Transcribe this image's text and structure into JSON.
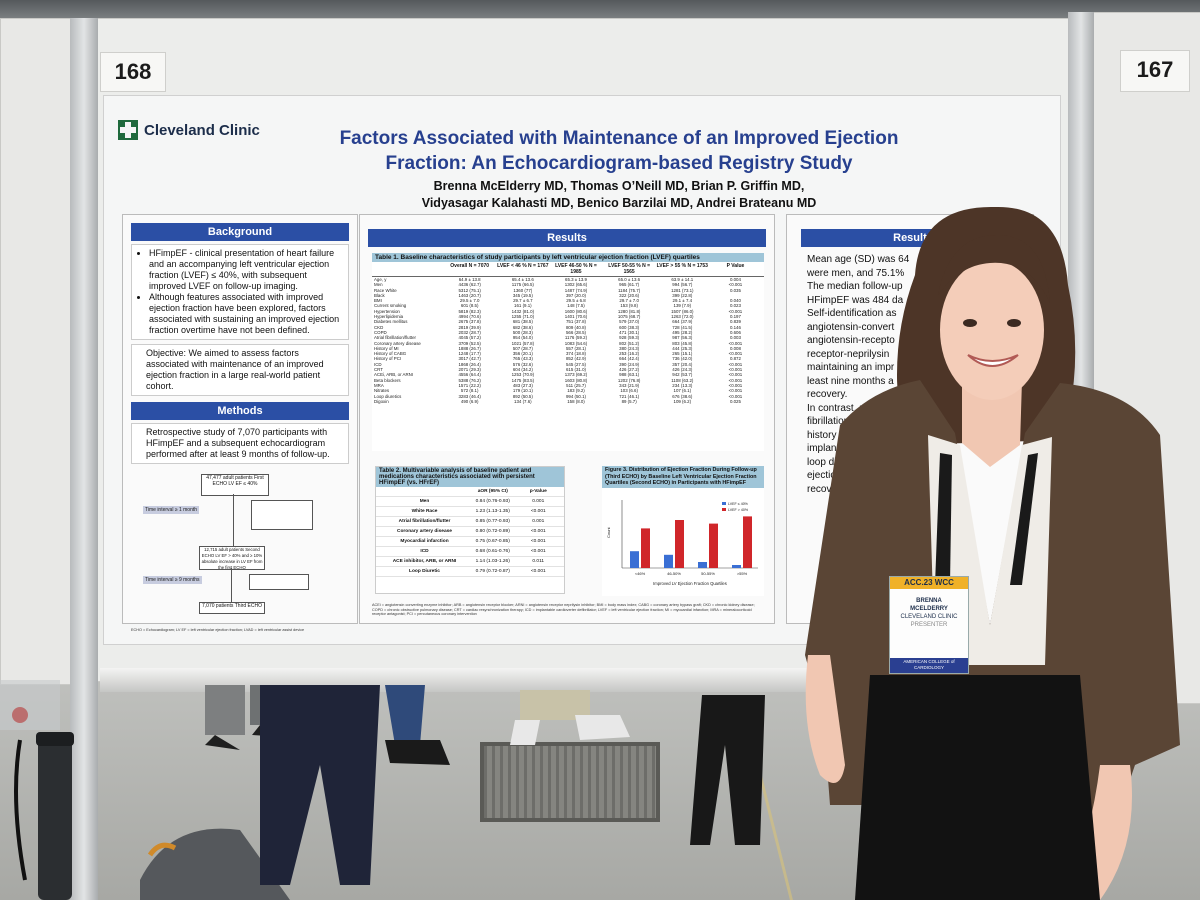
{
  "booths": {
    "left_number": "168",
    "right_number": "167"
  },
  "poster": {
    "logo": "Cleveland Clinic",
    "title": "Factors Associated with Maintenance of an Improved Ejection Fraction: An Echocardiogram-based Registry Study",
    "authors_line1": "Brenna McElderry MD, Thomas O’Neill MD, Brian P. Griffin MD,",
    "authors_line2": "Vidyasagar Kalahasti MD, Benico Barzilai MD, Andrei Brateanu MD",
    "background": {
      "header": "Background",
      "bullet1": "HFimpEF - clinical presentation of heart failure and an accompanying left ventricular ejection fraction (LVEF) ≤ 40%, with subsequent improved LVEF on follow-up imaging.",
      "bullet2": "Although features associated with improved ejection fraction have been explored, factors associated with sustaining an improved ejection fraction overtime have not been defined.",
      "objective": "Objective: We aimed to assess factors associated with maintenance of an improved ejection fraction in a large real-world patient cohort."
    },
    "methods": {
      "header": "Methods",
      "text": "Retrospective study of 7,070 participants with HFimpEF and a subsequent echocardiogram performed after at least 9 months of follow-up.",
      "flow_top": "47,477 adult patients First ECHO LV EF ≤ 40%",
      "flow_mid": "12,715 adult patients Second ECHO LV EF > 40% and ≥ 10% absolute increase in LV EF from the first ECHO",
      "flow_bottom": "7,070 patients Third ECHO",
      "flow_tag1": "Time interval ≥ 1 month",
      "flow_tag2": "Time interval ≥ 9 months",
      "footnote": "ECHO = Echocardiogram; LV EF = left ventricular ejection fraction; LVAD = left ventricular assist device"
    },
    "results": {
      "header": "Results",
      "table1_caption": "Table 1. Baseline characteristics of study participants by left ventricular ejection fraction (LVEF) quartiles",
      "table1_columns": [
        "",
        "Overall N = 7070",
        "LVEF < 46 % N = 1767",
        "LVEF 46-50 % N = 1985",
        "LVEF 50-55 % N = 1565",
        "LVEF > 55 % N = 1753",
        "P Value"
      ],
      "table1_rows": [
        [
          "Age, y",
          "64.9 ± 13.8",
          "65.4 ± 13.6",
          "65.3 ± 13.9",
          "65.0 ± 13.6",
          "63.9 ± 14.1",
          "0.004"
        ],
        [
          "Men",
          "4436 (62.7)",
          "1175 (66.5)",
          "1302 (65.6)",
          "965 (61.7)",
          "994 (56.7)",
          "<0.001"
        ],
        [
          "Race White",
          "5312 (75.1)",
          "1360 (77)",
          "1487 (74.9)",
          "1184 (75.7)",
          "1281 (73.1)",
          "0.035"
        ],
        [
          "Black",
          "1463 (20.7)",
          "345 (19.5)",
          "397 (20.0)",
          "322 (20.6)",
          "399 (22.8)",
          ""
        ],
        [
          "BMI",
          "29.5 ± 7.0",
          "29.7 ± 6.7",
          "29.5 ± 6.8",
          "29.7 ± 7.0",
          "29.1 ± 7.4",
          "0.040"
        ],
        [
          "Current smoking",
          "601 (8.5)",
          "161 (9.1)",
          "148 (7.5)",
          "153 (9.8)",
          "139 (7.9)",
          "0.023"
        ],
        [
          "Hypertension",
          "5819 (82.3)",
          "1432 (81.0)",
          "1600 (80.6)",
          "1280 (81.8)",
          "1507 (86.0)",
          "<0.001"
        ],
        [
          "Hyperlipidemia",
          "4994 (70.6)",
          "1255 (71.0)",
          "1401 (70.6)",
          "1075 (68.7)",
          "1263 (72.0)",
          "0.197"
        ],
        [
          "Diabetes mellitus",
          "2675 (37.8)",
          "681 (38.5)",
          "751 (37.8)",
          "579 (37.0)",
          "664 (37.9)",
          "0.839"
        ],
        [
          "CKD",
          "2819 (39.9)",
          "682 (38.6)",
          "809 (40.8)",
          "600 (38.3)",
          "728 (41.5)",
          "0.146"
        ],
        [
          "COPD",
          "2032 (28.7)",
          "500 (28.3)",
          "566 (28.5)",
          "471 (30.1)",
          "495 (28.2)",
          "0.606"
        ],
        [
          "Atrial fibrillation/flutter",
          "4045 (57.2)",
          "954 (54.0)",
          "1176 (59.2)",
          "928 (59.3)",
          "987 (56.3)",
          "0.003"
        ],
        [
          "Coronary artery disease",
          "3709 (52.5)",
          "1021 (57.8)",
          "1083 (54.6)",
          "802 (51.2)",
          "803 (45.8)",
          "<0.001"
        ],
        [
          "History of MI",
          "1888 (26.7)",
          "507 (28.7)",
          "557 (28.1)",
          "380 (24.3)",
          "444 (25.3)",
          "0.008"
        ],
        [
          "History of CABG",
          "1248 (17.7)",
          "356 (20.1)",
          "374 (18.8)",
          "253 (16.2)",
          "265 (15.1)",
          "<0.001"
        ],
        [
          "History of PCI",
          "3017 (42.7)",
          "765 (43.3)",
          "852 (42.9)",
          "664 (42.4)",
          "736 (42.0)",
          "0.872"
        ],
        [
          "ICD",
          "1868 (26.4)",
          "576 (32.6)",
          "545 (27.5)",
          "390 (24.9)",
          "357 (20.4)",
          "<0.001"
        ],
        [
          "CRT",
          "2071 (29.3)",
          "604 (34.2)",
          "615 (31.0)",
          "426 (27.2)",
          "426 (24.3)",
          "<0.001"
        ],
        [
          "ACEi, ARB, or ARNI",
          "4556 (64.4)",
          "1253 (70.9)",
          "1373 (69.2)",
          "988 (63.1)",
          "942 (53.7)",
          "<0.001"
        ],
        [
          "Beta blockers",
          "5388 (76.2)",
          "1475 (83.5)",
          "1603 (80.8)",
          "1202 (76.8)",
          "1108 (63.2)",
          "<0.001"
        ],
        [
          "MRA",
          "1571 (22.2)",
          "483 (27.3)",
          "511 (25.7)",
          "343 (21.9)",
          "234 (13.3)",
          "<0.001"
        ],
        [
          "Nitrates",
          "572 (8.1)",
          "179 (10.1)",
          "183 (9.2)",
          "103 (6.6)",
          "107 (6.1)",
          "<0.001"
        ],
        [
          "Loop diuretics",
          "3283 (46.4)",
          "892 (50.5)",
          "994 (50.1)",
          "721 (46.1)",
          "676 (38.6)",
          "<0.001"
        ],
        [
          "Digoxin",
          "490 (6.9)",
          "134 (7.6)",
          "158 (8.0)",
          "89 (5.7)",
          "109 (6.2)",
          "0.025"
        ]
      ],
      "table2_caption": "Table 2. Multivariable analysis of baseline patient and medications characteristics associated with persistent HFimpEF (vs. HFrEF)",
      "table2_columns": [
        "",
        "aOR (95% CI)",
        "p-Value"
      ],
      "table2_rows": [
        [
          "Men",
          "0.84 (0.76-0.93)",
          "0.001"
        ],
        [
          "White Race",
          "1.23 (1.13-1.35)",
          "<0.001"
        ],
        [
          "Atrial fibrillation/flutter",
          "0.85 (0.77-0.93)",
          "0.001"
        ],
        [
          "Coronary artery disease",
          "0.80 (0.72-0.89)",
          "<0.001"
        ],
        [
          "Myocardial infarction",
          "0.75 (0.67-0.85)",
          "<0.001"
        ],
        [
          "ICD",
          "0.68 (0.61-0.76)",
          "<0.001"
        ],
        [
          "ACE inhibitor, ARB, or ARNI",
          "1.14 (1.03-1.26)",
          "0.011"
        ],
        [
          "Loop Diuretic",
          "0.79 (0.72-0.87)",
          "<0.001"
        ]
      ],
      "figure3_caption": "Figure 3. Distribution of Ejection Fraction During Follow-up (Third ECHO) by Baseline Left Ventricular Ejection Fraction Quartiles (Second ECHO) in Participants with HFimpEF",
      "figure3_xlabel": "Improved LV Ejection Fraction Quartiles",
      "figure3_ylabel": "Count",
      "figure3_legend": [
        "LVEF ≤ 40%",
        "LVEF > 40%"
      ],
      "figure3_categories": [
        "<46%",
        "46-50%",
        "50-55%",
        ">55%"
      ],
      "figure3_colors": [
        "#3a6fd4",
        "#d0262a"
      ],
      "figure3_values_low": [
        0.28,
        0.22,
        0.1,
        0.05
      ],
      "figure3_values_high": [
        0.66,
        0.8,
        0.74,
        0.86
      ],
      "footnote": "ACEi = angiotensin converting enzyme inhibitor; ARB = angiotensin receptor blocker; ARNI = angiotensin receptor neprilysin inhibitor; BMI = body mass index; CABG = coronary artery bypass graft; CKD = chronic kidney disease; COPD = chronic obstructive pulmonary disease; CRT = cardiac resynchronization therapy; ICD = implantable cardioverter defibrillator; LVEF = left ventricular ejection fraction; MI = myocardial infarction; MRA = mineralocorticoid receptor antagonist; PCI = percutaneous coronary intervention"
    },
    "results_right": {
      "header": "Results",
      "line1": "Mean age (SD) was 64",
      "line2": "were men, and 75.1%",
      "line3": "The median follow-up",
      "line4": "HFimpEF was 484 da",
      "line5": "Self-identification as",
      "line6": "angiotensin-convert",
      "line7": "angiotensin-recepto",
      "line8": "receptor-neprilysin",
      "line9": "maintaining an impr",
      "line10": "least nine months a",
      "line11": "recovery.",
      "line12": "In contrast, mal",
      "line13": "fibrillation/flut",
      "line14": "history",
      "line15": "implan",
      "line16": "loop di",
      "line17": "ejectio",
      "line18": "recov"
    }
  },
  "badge": {
    "event": "ACC.23 WCC",
    "name_first": "BRENNA",
    "name_last": "MCELDERRY",
    "org": "CLEVELAND CLINIC",
    "role": "PRESENTER",
    "footer": "AMERICAN COLLEGE of CARDIOLOGY"
  }
}
